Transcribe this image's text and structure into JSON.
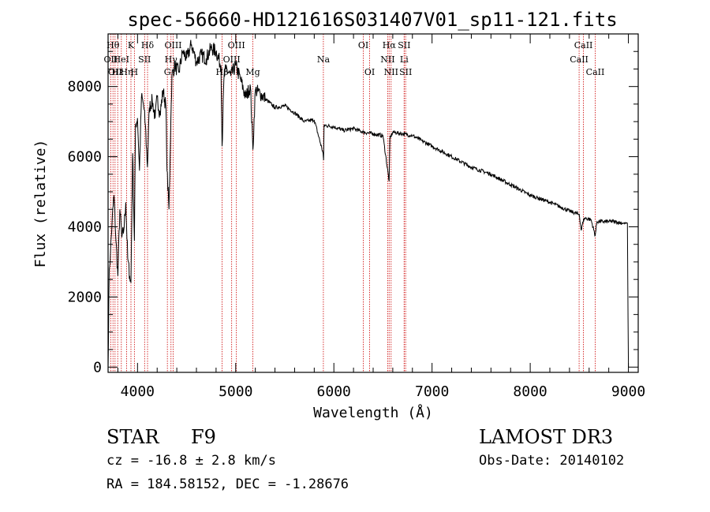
{
  "chart_data": {
    "type": "line",
    "title": "spec-56660-HD121616S031407V01_sp11-121.fits",
    "xlabel": "Wavelength (Å)",
    "ylabel": "Flux (relative)",
    "xlim": [
      3700,
      9100
    ],
    "ylim": [
      -150,
      9500
    ],
    "xticks": [
      4000,
      5000,
      6000,
      7000,
      8000,
      9000
    ],
    "yticks": [
      0,
      2000,
      4000,
      6000,
      8000
    ],
    "grid": false,
    "series": [
      {
        "name": "flux",
        "x": [
          3700,
          3712,
          3725,
          3740,
          3760,
          3780,
          3800,
          3820,
          3840,
          3860,
          3880,
          3900,
          3920,
          3933,
          3950,
          3968,
          3980,
          4000,
          4020,
          4040,
          4060,
          4080,
          4101,
          4120,
          4150,
          4180,
          4200,
          4230,
          4260,
          4290,
          4300,
          4320,
          4340,
          4350,
          4380,
          4420,
          4460,
          4500,
          4550,
          4600,
          4650,
          4700,
          4750,
          4800,
          4850,
          4861,
          4880,
          4900,
          4950,
          5000,
          5050,
          5100,
          5150,
          5175,
          5200,
          5250,
          5300,
          5400,
          5500,
          5600,
          5700,
          5800,
          5890,
          5895,
          5900,
          6000,
          6100,
          6200,
          6300,
          6400,
          6500,
          6563,
          6570,
          6600,
          6700,
          6800,
          6900,
          7000,
          7200,
          7400,
          7600,
          7800,
          8000,
          8200,
          8400,
          8500,
          8520,
          8542,
          8560,
          8620,
          8662,
          8680,
          8750,
          8850,
          8950,
          8990,
          9000
        ],
        "values": [
          0,
          2800,
          3300,
          4100,
          4900,
          3600,
          2600,
          4500,
          3700,
          3900,
          4700,
          3100,
          2600,
          2400,
          6100,
          3600,
          6900,
          7100,
          5600,
          7700,
          7500,
          6900,
          5700,
          7400,
          7600,
          7100,
          7700,
          7200,
          7900,
          7400,
          5600,
          4500,
          7100,
          8300,
          8600,
          8400,
          9000,
          8800,
          9200,
          8700,
          8900,
          8800,
          9100,
          9000,
          8600,
          6300,
          8200,
          8500,
          8300,
          8600,
          8200,
          7700,
          8000,
          6200,
          7900,
          7800,
          7650,
          7400,
          7450,
          7250,
          7000,
          7050,
          6100,
          5900,
          6900,
          6850,
          6750,
          6800,
          6700,
          6650,
          6600,
          5300,
          6500,
          6700,
          6650,
          6600,
          6450,
          6300,
          6000,
          5700,
          5500,
          5200,
          4900,
          4700,
          4450,
          4350,
          3900,
          4200,
          4250,
          4200,
          3750,
          4150,
          4150,
          4150,
          4100,
          4100,
          0
        ]
      }
    ],
    "line_markers": [
      {
        "wavelength": 3727,
        "label": "OII",
        "row": 2
      },
      {
        "wavelength": 3750,
        "label": "Hθ",
        "row": 1
      },
      {
        "wavelength": 3771,
        "label": "OII",
        "row": 3
      },
      {
        "wavelength": 3798,
        "label": "Hε",
        "row": 3
      },
      {
        "wavelength": 3835,
        "label": "HeI",
        "row": 2
      },
      {
        "wavelength": 3889,
        "label": "Hη",
        "row": 3
      },
      {
        "wavelength": 3933,
        "label": "K",
        "row": 1
      },
      {
        "wavelength": 3968,
        "label": "H",
        "row": 3
      },
      {
        "wavelength": 4072,
        "label": "SII",
        "row": 2
      },
      {
        "wavelength": 4102,
        "label": "Hδ",
        "row": 1
      },
      {
        "wavelength": 4304,
        "label": "G",
        "row": 3
      },
      {
        "wavelength": 4341,
        "label": "Hγ",
        "row": 2
      },
      {
        "wavelength": 4363,
        "label": "OIII",
        "row": 1
      },
      {
        "wavelength": 4861,
        "label": "Hβ",
        "row": 3
      },
      {
        "wavelength": 4959,
        "label": "OIII",
        "row": 2
      },
      {
        "wavelength": 5007,
        "label": "OIII",
        "row": 1
      },
      {
        "wavelength": 5175,
        "label": "Mg",
        "row": 3
      },
      {
        "wavelength": 5893,
        "label": "Na",
        "row": 2
      },
      {
        "wavelength": 6300,
        "label": "OI",
        "row": 1
      },
      {
        "wavelength": 6364,
        "label": "OI",
        "row": 3
      },
      {
        "wavelength": 6548,
        "label": "NII",
        "row": 2
      },
      {
        "wavelength": 6563,
        "label": "Hα",
        "row": 1
      },
      {
        "wavelength": 6583,
        "label": "NII",
        "row": 3
      },
      {
        "wavelength": 6716,
        "label": "SII",
        "row": 1
      },
      {
        "wavelength": 6716,
        "label": "Li",
        "row": 2
      },
      {
        "wavelength": 6731,
        "label": "SII",
        "row": 3
      },
      {
        "wavelength": 8498,
        "label": "CaII",
        "row": 2
      },
      {
        "wavelength": 8542,
        "label": "CaII",
        "row": 1
      },
      {
        "wavelength": 8662,
        "label": "CaII",
        "row": 3
      }
    ],
    "marker_color": "#cc0000",
    "line_color": "#000000"
  },
  "info": {
    "object_class": "STAR",
    "subclass": "F9",
    "survey": "LAMOST DR3",
    "redshift": "cz = -16.8 ± 2.8 km/s",
    "obs_date": "Obs-Date: 20140102",
    "coords": "RA = 184.58152, DEC =  -1.28676"
  }
}
